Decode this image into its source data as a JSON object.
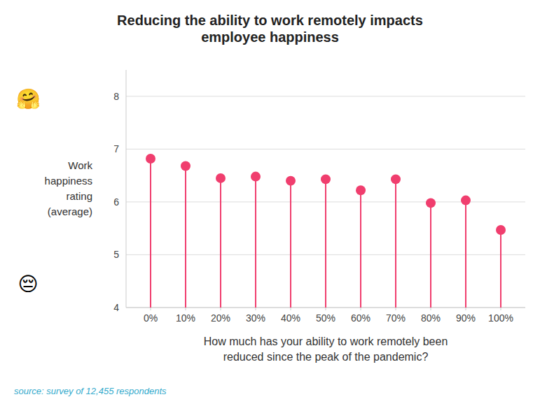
{
  "chart_data": {
    "type": "lollipop",
    "title": "Reducing the ability to work remotely impacts\nemployee happiness",
    "x_label": "How much has your ability to work remotely been\nreduced since the peak of the pandemic?",
    "y_label": "Work\nhappiness\nrating\n(average)",
    "source": "source: survey of 12,455 respondents",
    "annotations": [
      "🤗",
      "😔"
    ],
    "x": [
      0,
      10,
      20,
      30,
      40,
      50,
      60,
      70,
      80,
      90,
      100
    ],
    "values": [
      6.82,
      6.68,
      6.45,
      6.48,
      6.4,
      6.43,
      6.22,
      6.43,
      5.98,
      6.03,
      5.47
    ],
    "color": "#f03e6e",
    "xlim": [
      -7,
      107
    ],
    "xticks": [
      {
        "value": 0,
        "label": "0%"
      },
      {
        "value": 10,
        "label": "10%"
      },
      {
        "value": 20,
        "label": "20%"
      },
      {
        "value": 30,
        "label": "30%"
      },
      {
        "value": 40,
        "label": "40%"
      },
      {
        "value": 50,
        "label": "50%"
      },
      {
        "value": 60,
        "label": "60%"
      },
      {
        "value": 70,
        "label": "70%"
      },
      {
        "value": 80,
        "label": "80%"
      },
      {
        "value": 90,
        "label": "90%"
      },
      {
        "value": 100,
        "label": "100%"
      }
    ],
    "ylim": [
      4,
      8.5
    ],
    "yticks": [
      4,
      5,
      6,
      7,
      8
    ],
    "grid": true
  }
}
